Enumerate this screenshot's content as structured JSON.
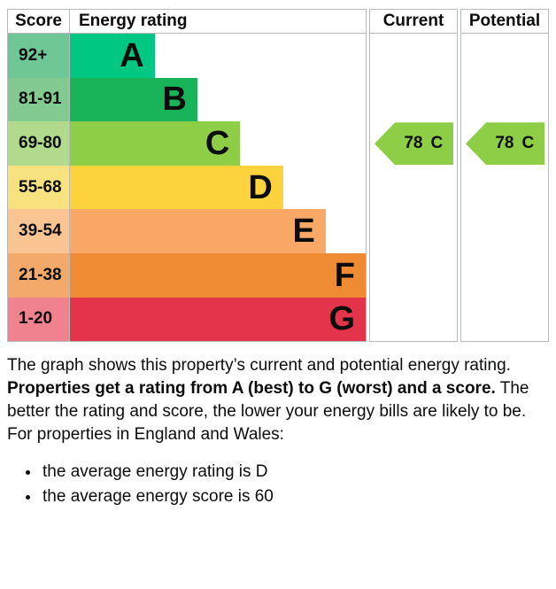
{
  "chart_data": {
    "type": "bar",
    "variant": "epc-energy-rating",
    "headers": {
      "score": "Score",
      "energy_rating": "Energy rating",
      "current": "Current",
      "potential": "Potential"
    },
    "bands": [
      {
        "letter": "A",
        "score_range": "92+",
        "bar_color": "#00c781",
        "score_bg": "#6fc796",
        "width_pct": 23.7
      },
      {
        "letter": "B",
        "score_range": "81-91",
        "bar_color": "#19b459",
        "score_bg": "#82ca90",
        "width_pct": 35.6
      },
      {
        "letter": "C",
        "score_range": "69-80",
        "bar_color": "#8dce46",
        "score_bg": "#b2da8d",
        "width_pct": 47.6
      },
      {
        "letter": "D",
        "score_range": "55-68",
        "bar_color": "#fcd33c",
        "score_bg": "#f8e27f",
        "width_pct": 59.6
      },
      {
        "letter": "E",
        "score_range": "39-54",
        "bar_color": "#f9a865",
        "score_bg": "#fbc593",
        "width_pct": 71.5
      },
      {
        "letter": "F",
        "score_range": "21-38",
        "bar_color": "#ee8b33",
        "score_bg": "#f2a96a",
        "width_pct": 83.5
      },
      {
        "letter": "G",
        "score_range": "1-20",
        "bar_color": "#e4344b",
        "score_bg": "#f0818f",
        "width_pct": 95.5
      }
    ],
    "current": {
      "score": "78",
      "band": "C",
      "arrow_color": "#8dce46",
      "band_index": 2
    },
    "potential": {
      "score": "78",
      "band": "C",
      "arrow_color": "#8dce46",
      "band_index": 2
    }
  },
  "description": {
    "intro": "The graph shows this property’s current and potential energy rating.",
    "rating_bold": "Properties get a rating from A (best) to G (worst) and a score.",
    "rating_rest": " The better the rating and score, the lower your energy bills are likely to be.",
    "region_line": "For properties in England and Wales:",
    "bullets": [
      "the average energy rating is D",
      "the average energy score is 60"
    ]
  }
}
